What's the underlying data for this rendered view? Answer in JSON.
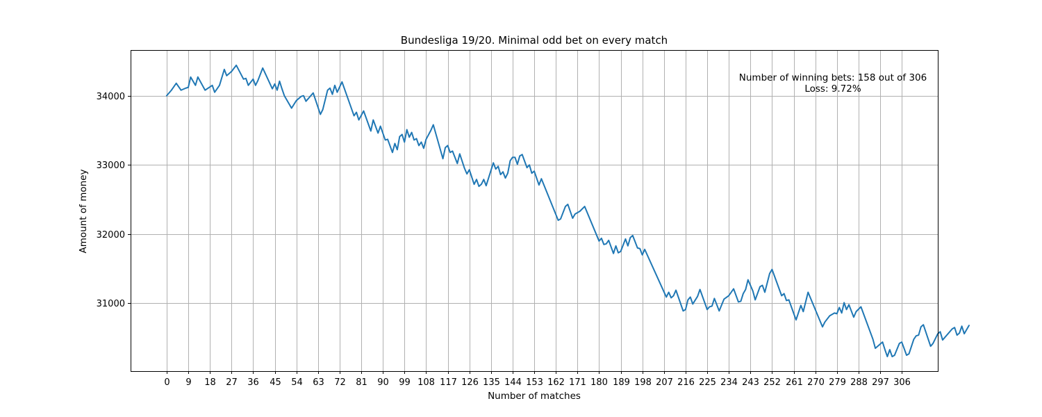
{
  "chart_data": {
    "type": "line",
    "title": "Bundesliga 19/20. Minimal odd bet on every match",
    "xlabel": "Number of matches",
    "ylabel": "Amount of money",
    "xlim": [
      -15,
      321
    ],
    "ylim": [
      30020,
      34660
    ],
    "x_ticks": [
      0,
      9,
      18,
      27,
      36,
      45,
      54,
      63,
      72,
      81,
      90,
      99,
      108,
      117,
      126,
      135,
      144,
      153,
      162,
      171,
      180,
      189,
      198,
      207,
      216,
      225,
      234,
      243,
      252,
      261,
      270,
      279,
      288,
      297,
      306
    ],
    "y_ticks": [
      31000,
      32000,
      33000,
      34000
    ],
    "grid": true,
    "annotations": [
      "Number of winning bets: 158 out of 306",
      "Loss: 9.72%"
    ],
    "series": [
      {
        "color": "#1f77b4",
        "points": [
          [
            0,
            34000
          ],
          [
            2,
            34080
          ],
          [
            4,
            34180
          ],
          [
            6,
            34080
          ],
          [
            8,
            34110
          ],
          [
            9,
            34120
          ],
          [
            10,
            34270
          ],
          [
            12,
            34150
          ],
          [
            13,
            34270
          ],
          [
            16,
            34080
          ],
          [
            19,
            34150
          ],
          [
            20,
            34050
          ],
          [
            22,
            34150
          ],
          [
            24,
            34380
          ],
          [
            25,
            34290
          ],
          [
            27,
            34350
          ],
          [
            29,
            34440
          ],
          [
            32,
            34240
          ],
          [
            33,
            34250
          ],
          [
            34,
            34150
          ],
          [
            36,
            34240
          ],
          [
            37,
            34150
          ],
          [
            38,
            34220
          ],
          [
            40,
            34400
          ],
          [
            44,
            34100
          ],
          [
            45,
            34170
          ],
          [
            46,
            34080
          ],
          [
            47,
            34210
          ],
          [
            48,
            34100
          ],
          [
            49,
            34000
          ],
          [
            52,
            33820
          ],
          [
            54,
            33930
          ],
          [
            56,
            33990
          ],
          [
            57,
            34000
          ],
          [
            58,
            33920
          ],
          [
            61,
            34040
          ],
          [
            64,
            33730
          ],
          [
            65,
            33800
          ],
          [
            67,
            34080
          ],
          [
            68,
            34110
          ],
          [
            69,
            34020
          ],
          [
            70,
            34150
          ],
          [
            71,
            34050
          ],
          [
            73,
            34200
          ],
          [
            78,
            33710
          ],
          [
            79,
            33760
          ],
          [
            80,
            33650
          ],
          [
            82,
            33780
          ],
          [
            85,
            33490
          ],
          [
            86,
            33650
          ],
          [
            88,
            33460
          ],
          [
            89,
            33560
          ],
          [
            91,
            33360
          ],
          [
            92,
            33370
          ],
          [
            94,
            33180
          ],
          [
            95,
            33310
          ],
          [
            96,
            33220
          ],
          [
            97,
            33410
          ],
          [
            98,
            33440
          ],
          [
            99,
            33330
          ],
          [
            100,
            33510
          ],
          [
            101,
            33400
          ],
          [
            102,
            33470
          ],
          [
            103,
            33360
          ],
          [
            104,
            33380
          ],
          [
            105,
            33280
          ],
          [
            106,
            33330
          ],
          [
            107,
            33240
          ],
          [
            108,
            33370
          ],
          [
            110,
            33500
          ],
          [
            111,
            33580
          ],
          [
            115,
            33090
          ],
          [
            116,
            33250
          ],
          [
            117,
            33280
          ],
          [
            118,
            33180
          ],
          [
            119,
            33200
          ],
          [
            121,
            33020
          ],
          [
            122,
            33160
          ],
          [
            124,
            32950
          ],
          [
            125,
            32870
          ],
          [
            126,
            32930
          ],
          [
            128,
            32720
          ],
          [
            129,
            32790
          ],
          [
            130,
            32690
          ],
          [
            131,
            32720
          ],
          [
            132,
            32790
          ],
          [
            133,
            32700
          ],
          [
            136,
            33030
          ],
          [
            137,
            32940
          ],
          [
            138,
            32980
          ],
          [
            139,
            32860
          ],
          [
            140,
            32900
          ],
          [
            141,
            32810
          ],
          [
            142,
            32880
          ],
          [
            143,
            33060
          ],
          [
            144,
            33110
          ],
          [
            145,
            33110
          ],
          [
            146,
            33010
          ],
          [
            147,
            33130
          ],
          [
            148,
            33150
          ],
          [
            150,
            32960
          ],
          [
            151,
            33000
          ],
          [
            152,
            32880
          ],
          [
            153,
            32910
          ],
          [
            155,
            32710
          ],
          [
            156,
            32800
          ],
          [
            163,
            32200
          ],
          [
            164,
            32220
          ],
          [
            166,
            32400
          ],
          [
            167,
            32430
          ],
          [
            169,
            32230
          ],
          [
            170,
            32290
          ],
          [
            172,
            32330
          ],
          [
            174,
            32400
          ],
          [
            180,
            31900
          ],
          [
            181,
            31940
          ],
          [
            182,
            31850
          ],
          [
            183,
            31860
          ],
          [
            184,
            31910
          ],
          [
            186,
            31720
          ],
          [
            187,
            31830
          ],
          [
            188,
            31730
          ],
          [
            189,
            31750
          ],
          [
            190,
            31840
          ],
          [
            191,
            31930
          ],
          [
            192,
            31830
          ],
          [
            193,
            31950
          ],
          [
            194,
            31980
          ],
          [
            196,
            31800
          ],
          [
            197,
            31790
          ],
          [
            198,
            31700
          ],
          [
            199,
            31780
          ],
          [
            208,
            31090
          ],
          [
            209,
            31160
          ],
          [
            210,
            31080
          ],
          [
            211,
            31110
          ],
          [
            212,
            31190
          ],
          [
            215,
            30890
          ],
          [
            216,
            30910
          ],
          [
            217,
            31050
          ],
          [
            218,
            31090
          ],
          [
            219,
            30990
          ],
          [
            221,
            31100
          ],
          [
            222,
            31200
          ],
          [
            225,
            30910
          ],
          [
            226,
            30950
          ],
          [
            227,
            30960
          ],
          [
            228,
            31070
          ],
          [
            230,
            30890
          ],
          [
            232,
            31060
          ],
          [
            234,
            31110
          ],
          [
            236,
            31210
          ],
          [
            238,
            31020
          ],
          [
            239,
            31030
          ],
          [
            240,
            31140
          ],
          [
            241,
            31200
          ],
          [
            242,
            31340
          ],
          [
            244,
            31180
          ],
          [
            245,
            31050
          ],
          [
            247,
            31240
          ],
          [
            248,
            31260
          ],
          [
            249,
            31160
          ],
          [
            251,
            31430
          ],
          [
            252,
            31490
          ],
          [
            256,
            31110
          ],
          [
            257,
            31140
          ],
          [
            258,
            31040
          ],
          [
            259,
            31050
          ],
          [
            262,
            30760
          ],
          [
            264,
            30970
          ],
          [
            265,
            30880
          ],
          [
            267,
            31160
          ],
          [
            273,
            30660
          ],
          [
            274,
            30730
          ],
          [
            276,
            30820
          ],
          [
            278,
            30860
          ],
          [
            279,
            30850
          ],
          [
            280,
            30940
          ],
          [
            281,
            30860
          ],
          [
            282,
            31010
          ],
          [
            283,
            30910
          ],
          [
            284,
            30980
          ],
          [
            286,
            30800
          ],
          [
            287,
            30880
          ],
          [
            289,
            30950
          ],
          [
            294,
            30480
          ],
          [
            295,
            30350
          ],
          [
            298,
            30440
          ],
          [
            299,
            30330
          ],
          [
            300,
            30230
          ],
          [
            301,
            30330
          ],
          [
            302,
            30230
          ],
          [
            303,
            30250
          ],
          [
            305,
            30420
          ],
          [
            306,
            30440
          ],
          [
            308,
            30250
          ],
          [
            309,
            30270
          ],
          [
            311,
            30480
          ],
          [
            312,
            30530
          ],
          [
            313,
            30540
          ],
          [
            314,
            30660
          ],
          [
            315,
            30690
          ],
          [
            318,
            30380
          ],
          [
            319,
            30420
          ],
          [
            321,
            30560
          ],
          [
            322,
            30590
          ],
          [
            323,
            30470
          ],
          [
            327,
            30630
          ],
          [
            328,
            30650
          ],
          [
            329,
            30540
          ],
          [
            330,
            30570
          ],
          [
            331,
            30670
          ],
          [
            332,
            30560
          ],
          [
            334,
            30680
          ]
        ]
      }
    ]
  }
}
